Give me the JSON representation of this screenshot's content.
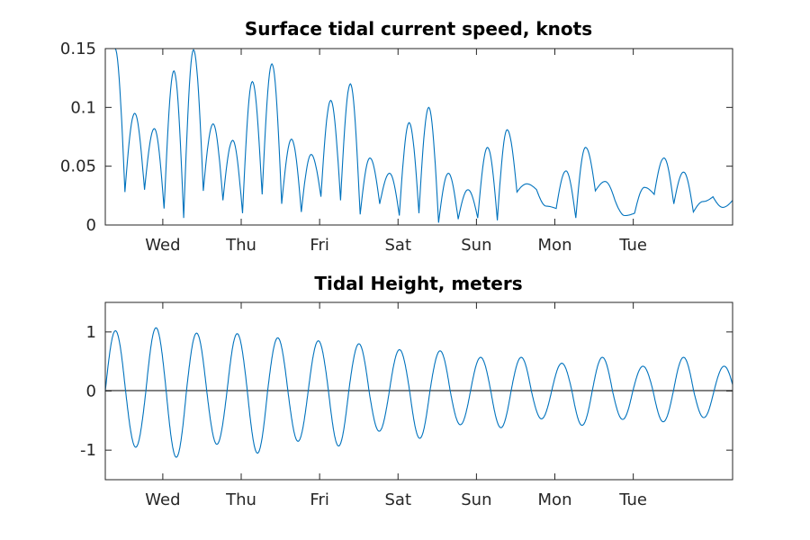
{
  "chart_data": [
    {
      "type": "line",
      "title": "Surface tidal current speed, knots",
      "x_ticks": [
        "Wed",
        "Thu",
        "Fri",
        "Sat",
        "Sun",
        "Mon",
        "Tue"
      ],
      "x_tick_positions_days": [
        1,
        2,
        3,
        4,
        5,
        6,
        7
      ],
      "xlim_days": [
        0.2667,
        8.2667
      ],
      "ylim": [
        0,
        0.15
      ],
      "y_ticks": [
        0,
        0.05,
        0.1,
        0.15
      ],
      "y_tick_labels": [
        "0",
        "0.05",
        "0.1",
        "0.15"
      ],
      "grid": false,
      "series": [
        {
          "color": "#0072BD",
          "x_days": [
            0.2667,
            0.3,
            0.45,
            0.6,
            0.75,
            0.88,
            1.0,
            1.25,
            1.4,
            1.6,
            1.75,
            1.9,
            2.0,
            2.2,
            2.35,
            2.5,
            2.65,
            2.8,
            2.9,
            3.0,
            3.2,
            3.35,
            3.55,
            3.65,
            3.75,
            3.85,
            4.0,
            4.2,
            4.35,
            4.5,
            4.6,
            4.7,
            4.9,
            5.0,
            5.2,
            5.35,
            5.5,
            5.6,
            5.7,
            5.9,
            6.0,
            6.2,
            6.35,
            6.45,
            6.6,
            6.7,
            6.85,
            7.0,
            7.1,
            7.2,
            7.35,
            7.5,
            7.6,
            7.75,
            7.9,
            8.0,
            8.2,
            8.2667
          ],
          "y": [
            0.15,
            0.15,
            0.095,
            0.082,
            0.131,
            0.149,
            0.086,
            0.072,
            0.122,
            0.137,
            0.073,
            0.06,
            0.106,
            0.12,
            0.057,
            0.044,
            0.087,
            0.1,
            0.044,
            0.03,
            0.066,
            0.081,
            0.035,
            0.016,
            0.013,
            0.046,
            0.066,
            0.037,
            0.008,
            0.008,
            0.032,
            0.057,
            0.045,
            0.02,
            0.015,
            0.03,
            0.045,
            0.025,
            0.035,
            0.05,
            0.03,
            0.055,
            0.04,
            0.02,
            0.04,
            0.015,
            0.025,
            0.03,
            0.01,
            0.02,
            0.035,
            0.02,
            0.015,
            0.03,
            0.02,
            0.01,
            0.012,
            0.015
          ],
          "local_minima": [
            0.028,
            0.03,
            0.014,
            0.006,
            0.029,
            0.021,
            0.01,
            0.026,
            0.018,
            0.011,
            0.024,
            0.021,
            0.009,
            0.018,
            0.008,
            0.01,
            0.002,
            0.005,
            0.006,
            0.004
          ]
        }
      ]
    },
    {
      "type": "line",
      "title": "Tidal Height, meters",
      "x_ticks": [
        "Wed",
        "Thu",
        "Fri",
        "Sat",
        "Sun",
        "Mon",
        "Tue"
      ],
      "x_tick_positions_days": [
        1,
        2,
        3,
        4,
        5,
        6,
        7
      ],
      "xlim_days": [
        0.2667,
        8.2667
      ],
      "ylim": [
        -1.5,
        1.5
      ],
      "y_ticks": [
        -1,
        0,
        1
      ],
      "y_tick_labels": [
        "-1",
        "0",
        "1"
      ],
      "grid": false,
      "reference_line_y": 0,
      "series": [
        {
          "color": "#0072BD",
          "peaks": [
            1.02,
            1.07,
            0.98,
            0.97,
            0.9,
            0.85,
            0.8,
            0.7,
            0.68,
            0.57,
            0.57,
            0.47,
            0.57,
            0.42,
            0.57,
            0.42
          ],
          "troughs": [
            -0.95,
            -1.12,
            -0.9,
            -1.05,
            -0.85,
            -0.93,
            -0.68,
            -0.8,
            -0.57,
            -0.62,
            -0.47,
            -0.58,
            -0.48,
            -0.52,
            -0.45
          ],
          "period_days": 0.5175,
          "start_value": -0.15
        }
      ]
    }
  ]
}
